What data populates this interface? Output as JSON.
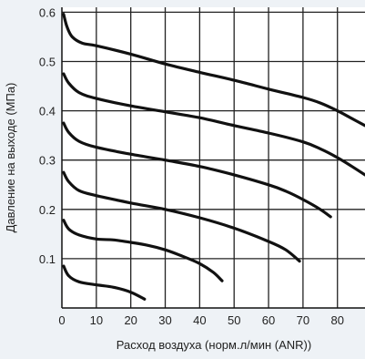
{
  "chart_data": {
    "type": "line",
    "title": "",
    "xlabel": "Расход воздуха (норм.л/мин (ANR))",
    "ylabel": "Давление на выходе (МПа)",
    "xlim": [
      0,
      88
    ],
    "ylim": [
      0,
      0.61
    ],
    "xticks": [
      0,
      10,
      20,
      30,
      40,
      50,
      60,
      70,
      80
    ],
    "yticks": [
      0.1,
      0.2,
      0.3,
      0.4,
      0.5,
      0.6
    ],
    "ytick_labels": [
      "0.1",
      "0.2",
      "0.3",
      "0.4",
      "0.5",
      "0.6"
    ],
    "grid": true,
    "legend": "none",
    "colors": {
      "background": "#eef2f6",
      "plot": "#ffffff",
      "curve": "#111111",
      "grid": "#222222"
    },
    "series": [
      {
        "points": [
          [
            0.5,
            0.596
          ],
          [
            1.5,
            0.57
          ],
          [
            3,
            0.55
          ],
          [
            6,
            0.537
          ],
          [
            10,
            0.532
          ],
          [
            20,
            0.515
          ],
          [
            30,
            0.495
          ],
          [
            40,
            0.478
          ],
          [
            50,
            0.462
          ],
          [
            60,
            0.444
          ],
          [
            70,
            0.427
          ],
          [
            75,
            0.416
          ],
          [
            80,
            0.4
          ],
          [
            84,
            0.385
          ],
          [
            88,
            0.37
          ]
        ]
      },
      {
        "points": [
          [
            0.5,
            0.475
          ],
          [
            2,
            0.456
          ],
          [
            5,
            0.437
          ],
          [
            10,
            0.425
          ],
          [
            20,
            0.41
          ],
          [
            30,
            0.398
          ],
          [
            40,
            0.386
          ],
          [
            50,
            0.37
          ],
          [
            60,
            0.355
          ],
          [
            70,
            0.337
          ],
          [
            75,
            0.323
          ],
          [
            80,
            0.305
          ],
          [
            84,
            0.288
          ],
          [
            88,
            0.27
          ]
        ]
      },
      {
        "points": [
          [
            0.5,
            0.375
          ],
          [
            2,
            0.356
          ],
          [
            5,
            0.338
          ],
          [
            10,
            0.326
          ],
          [
            20,
            0.312
          ],
          [
            30,
            0.3
          ],
          [
            40,
            0.287
          ],
          [
            50,
            0.27
          ],
          [
            60,
            0.25
          ],
          [
            65,
            0.237
          ],
          [
            70,
            0.22
          ],
          [
            75,
            0.2
          ],
          [
            78,
            0.185
          ]
        ]
      },
      {
        "points": [
          [
            0.5,
            0.275
          ],
          [
            2,
            0.256
          ],
          [
            5,
            0.238
          ],
          [
            10,
            0.228
          ],
          [
            20,
            0.213
          ],
          [
            30,
            0.2
          ],
          [
            40,
            0.183
          ],
          [
            50,
            0.162
          ],
          [
            60,
            0.135
          ],
          [
            65,
            0.118
          ],
          [
            69,
            0.095
          ]
        ]
      },
      {
        "points": [
          [
            0.5,
            0.178
          ],
          [
            2,
            0.16
          ],
          [
            5,
            0.148
          ],
          [
            10,
            0.14
          ],
          [
            15,
            0.138
          ],
          [
            20,
            0.133
          ],
          [
            25,
            0.127
          ],
          [
            30,
            0.118
          ],
          [
            35,
            0.105
          ],
          [
            40,
            0.09
          ],
          [
            44,
            0.072
          ],
          [
            46.5,
            0.055
          ]
        ]
      },
      {
        "points": [
          [
            0.5,
            0.085
          ],
          [
            2,
            0.065
          ],
          [
            5,
            0.053
          ],
          [
            10,
            0.047
          ],
          [
            15,
            0.042
          ],
          [
            20,
            0.032
          ],
          [
            24,
            0.018
          ]
        ]
      }
    ]
  }
}
